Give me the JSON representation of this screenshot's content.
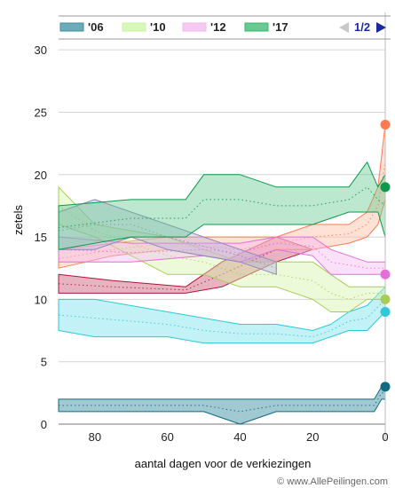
{
  "chart_data": {
    "type": "area",
    "title": "",
    "xlabel": "aantal dagen voor de verkiezingen",
    "ylabel": "zetels",
    "xlim": [
      90,
      0
    ],
    "ylim": [
      0,
      33
    ],
    "x_ticks": [
      80,
      60,
      40,
      20,
      0
    ],
    "y_ticks": [
      0,
      5,
      10,
      15,
      20,
      25,
      30
    ],
    "grid": "horizontal",
    "legend_position": "top",
    "legend": [
      {
        "label": "'06",
        "color": "#3d8fa0"
      },
      {
        "label": "'10",
        "color": "#c9f5a3"
      },
      {
        "label": "'12",
        "color": "#f2b7ee"
      },
      {
        "label": "'17",
        "color": "#35b86b"
      }
    ],
    "pager": "1/2",
    "series": [
      {
        "name": "",
        "color": "#0f6b80",
        "fill": "#1f7f92",
        "x": [
          90,
          80,
          72,
          60,
          50,
          40,
          30,
          20,
          10,
          3,
          1,
          0
        ],
        "low": [
          1,
          1,
          1,
          1,
          1,
          0,
          1,
          1,
          1,
          1,
          2,
          2
        ],
        "high": [
          2,
          2,
          2,
          2,
          2,
          2,
          2,
          2,
          2,
          2,
          3,
          3
        ],
        "last": 3
      },
      {
        "name": "",
        "color": "#2ec8d6",
        "fill": "#6fe0ea",
        "x": [
          90,
          80,
          60,
          50,
          40,
          30,
          20,
          15,
          10,
          5,
          0
        ],
        "low": [
          7.5,
          7,
          7,
          6.5,
          6.5,
          6.5,
          6.5,
          7,
          7.5,
          7.5,
          9
        ],
        "high": [
          10,
          10,
          9,
          8.5,
          8,
          8,
          7.5,
          8,
          9,
          9.5,
          11
        ],
        "last": 9
      },
      {
        "name": "",
        "color": "#b0133d",
        "fill": "#c84a6a",
        "x": [
          90,
          75,
          55,
          45,
          30,
          20
        ],
        "low": [
          10.5,
          10.5,
          10.5,
          11,
          13,
          14
        ],
        "high": [
          12,
          11.5,
          11,
          13,
          15,
          14
        ],
        "last": null
      },
      {
        "name": "",
        "color": "#ff7a50",
        "fill": "#ffb79a",
        "x": [
          90,
          75,
          60,
          50,
          40,
          30,
          20,
          10,
          5,
          2,
          0
        ],
        "low": [
          12.5,
          13.5,
          14,
          13.5,
          13,
          14,
          14,
          14.5,
          15,
          16,
          18
        ],
        "high": [
          14,
          14.5,
          15,
          15,
          15,
          15,
          16,
          16,
          17,
          19,
          24
        ],
        "last": 24
      },
      {
        "name": "",
        "color": "#a8cd55",
        "fill": "#d3f3a7",
        "x": [
          90,
          80,
          60,
          50,
          40,
          30,
          20,
          15,
          10,
          5,
          0
        ],
        "low": [
          16,
          15,
          12,
          12,
          11,
          11,
          10,
          9,
          9,
          10,
          10
        ],
        "high": [
          19,
          16,
          15,
          14,
          13,
          13,
          13,
          12,
          11,
          11,
          11
        ],
        "last": 10
      },
      {
        "name": "",
        "color": "#e36fd9",
        "fill": "#f4b8ee",
        "x": [
          90,
          70,
          50,
          40,
          30,
          20,
          15,
          10,
          5,
          0
        ],
        "low": [
          13,
          13,
          13.5,
          13,
          14,
          13.5,
          12,
          12,
          12,
          12
        ],
        "high": [
          15,
          14.5,
          14.5,
          14.5,
          15,
          15,
          14,
          13.5,
          13,
          13
        ],
        "last": 12
      },
      {
        "name": "",
        "color": "#8e87c4",
        "fill": "#b8b3dc",
        "x": [
          90,
          80,
          70,
          60,
          50,
          40,
          30
        ],
        "low": [
          14,
          14,
          15,
          14,
          13.5,
          13,
          12
        ],
        "high": [
          17,
          18,
          17,
          16,
          15,
          14,
          13
        ],
        "last": null
      },
      {
        "name": "",
        "color": "#0a9a4a",
        "fill": "#5cc98a",
        "x": [
          90,
          70,
          55,
          50,
          40,
          30,
          20,
          10,
          5,
          2,
          0
        ],
        "low": [
          14,
          15,
          15,
          16,
          16,
          16,
          16,
          17,
          17,
          17,
          15
        ],
        "high": [
          17.5,
          18,
          18,
          20,
          20,
          19,
          19,
          19,
          21,
          19,
          20
        ],
        "last": 19
      }
    ]
  },
  "footer": "© www.AllePeilingen.com"
}
